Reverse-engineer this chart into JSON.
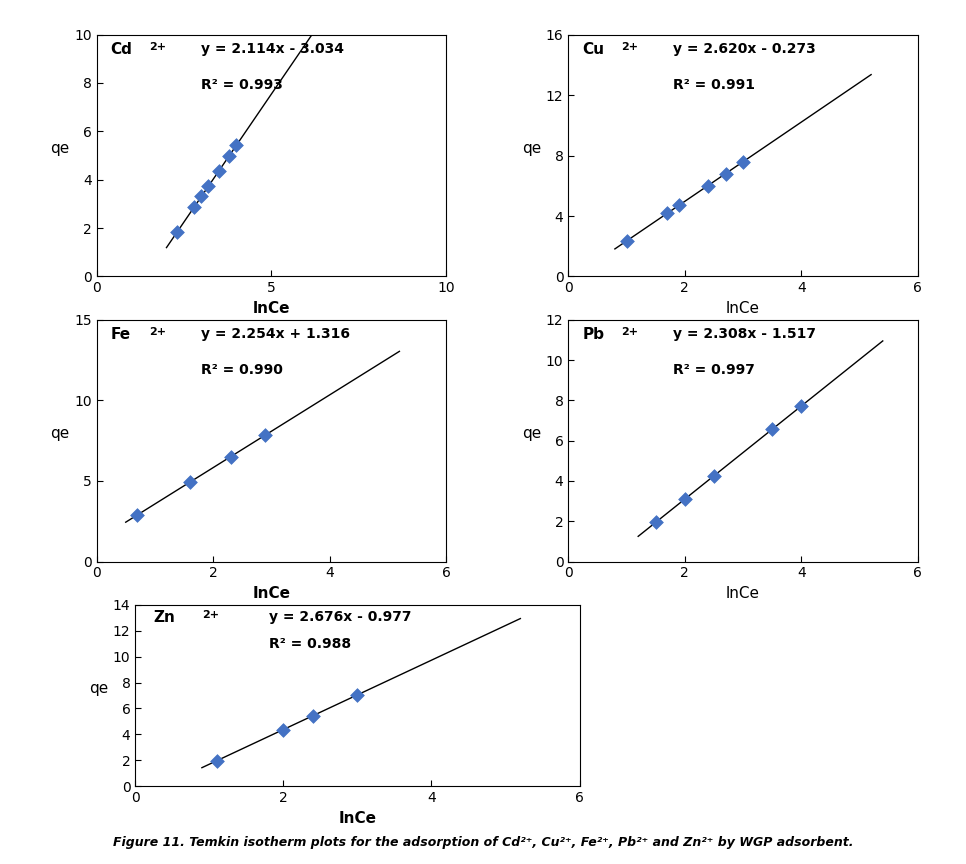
{
  "plots": [
    {
      "ion": "Cd",
      "superscript": "2+",
      "equation": "y = 2.114x - 3.034",
      "r2": "R² = 0.993",
      "slope": 2.114,
      "intercept": -3.034,
      "x_data": [
        2.3,
        2.8,
        3.0,
        3.2,
        3.5,
        3.8,
        4.0
      ],
      "xlim": [
        0,
        10
      ],
      "ylim": [
        0,
        10
      ],
      "xticks": [
        0,
        5,
        10
      ],
      "yticks": [
        0,
        2,
        4,
        6,
        8,
        10
      ],
      "xlabel": "lnCe",
      "xlabel_bold": true,
      "line_xrange": [
        2.0,
        6.2
      ]
    },
    {
      "ion": "Cu",
      "superscript": "2+",
      "equation": "y = 2.620x - 0.273",
      "r2": "R² = 0.991",
      "slope": 2.62,
      "intercept": -0.273,
      "x_data": [
        1.0,
        1.7,
        1.9,
        2.4,
        2.7,
        3.0
      ],
      "xlim": [
        0,
        6
      ],
      "ylim": [
        0,
        16
      ],
      "xticks": [
        0,
        2,
        4,
        6
      ],
      "yticks": [
        0,
        4,
        8,
        12,
        16
      ],
      "xlabel": "lnCe",
      "xlabel_bold": false,
      "line_xrange": [
        0.8,
        5.2
      ]
    },
    {
      "ion": "Fe",
      "superscript": "2+",
      "equation": "y = 2.254x + 1.316",
      "r2": "R² = 0.990",
      "slope": 2.254,
      "intercept": 1.316,
      "x_data": [
        0.7,
        1.6,
        2.3,
        2.9
      ],
      "xlim": [
        0,
        6
      ],
      "ylim": [
        0,
        15
      ],
      "xticks": [
        0,
        2,
        4,
        6
      ],
      "yticks": [
        0,
        5,
        10,
        15
      ],
      "xlabel": "InCe",
      "xlabel_bold": true,
      "line_xrange": [
        0.5,
        5.2
      ]
    },
    {
      "ion": "Pb",
      "superscript": "2+",
      "equation": "y = 2.308x - 1.517",
      "r2": "R² = 0.997",
      "slope": 2.308,
      "intercept": -1.517,
      "x_data": [
        1.5,
        2.0,
        2.5,
        3.5,
        4.0
      ],
      "xlim": [
        0,
        6
      ],
      "ylim": [
        0,
        12
      ],
      "xticks": [
        0,
        2,
        4,
        6
      ],
      "yticks": [
        0,
        2,
        4,
        6,
        8,
        10,
        12
      ],
      "xlabel": "lnCe",
      "xlabel_bold": false,
      "line_xrange": [
        1.2,
        5.4
      ]
    },
    {
      "ion": "Zn",
      "superscript": "2+",
      "equation": "y = 2.676x - 0.977",
      "r2": "R² = 0.988",
      "slope": 2.676,
      "intercept": -0.977,
      "x_data": [
        1.1,
        2.0,
        2.4,
        3.0
      ],
      "xlim": [
        0,
        6
      ],
      "ylim": [
        0,
        14
      ],
      "xticks": [
        0,
        2,
        4,
        6
      ],
      "yticks": [
        0,
        2,
        4,
        6,
        8,
        10,
        12,
        14
      ],
      "xlabel": "InCe",
      "xlabel_bold": true,
      "line_xrange": [
        0.9,
        5.2
      ]
    }
  ],
  "marker_color": "#4472C4",
  "marker_size": 7,
  "line_color": "black",
  "line_width": 1.0,
  "caption": "Figure 11. Temkin isotherm plots for the adsorption of Cd²⁺, Cu²⁺, Fe²⁺, Pb²⁺ and Zn²⁺ by WGP adsorbent.",
  "bg_color": "white",
  "panel_bg": "white"
}
